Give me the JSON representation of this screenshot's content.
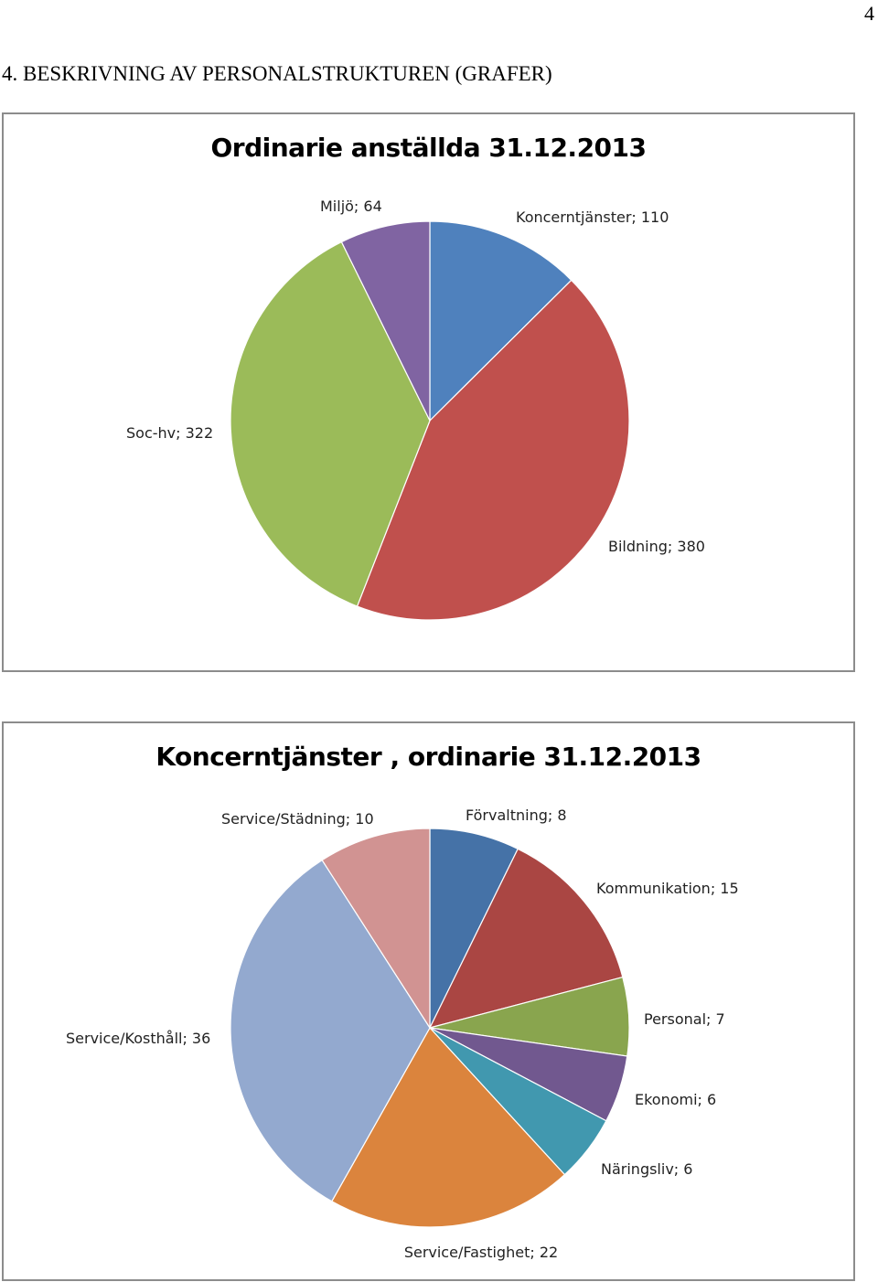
{
  "page": {
    "number": "4",
    "heading": "4. BESKRIVNING AV PERSONALSTRUKTUREN (GRAFER)"
  },
  "chart_data": [
    {
      "type": "pie",
      "title": "Ordinarie anställda 31.12.2013",
      "slices": [
        {
          "label": "Koncerntjänster; 110",
          "name": "Koncerntjänster",
          "value": 110,
          "color": "#4f81bd"
        },
        {
          "label": "Bildning; 380",
          "name": "Bildning",
          "value": 380,
          "color": "#c0504d"
        },
        {
          "label": "Soc-hv; 322",
          "name": "Soc-hv",
          "value": 322,
          "color": "#9bbb59"
        },
        {
          "label": "Miljö; 64",
          "name": "Miljö",
          "value": 64,
          "color": "#8064a2"
        }
      ]
    },
    {
      "type": "pie",
      "title": "Koncerntjänster , ordinarie 31.12.2013",
      "slices": [
        {
          "label": "Förvaltning; 8",
          "name": "Förvaltning",
          "value": 8,
          "color": "#4572a7"
        },
        {
          "label": "Kommunikation; 15",
          "name": "Kommunikation",
          "value": 15,
          "color": "#aa4643"
        },
        {
          "label": "Personal; 7",
          "name": "Personal",
          "value": 7,
          "color": "#89a54e"
        },
        {
          "label": "Ekonomi; 6",
          "name": "Ekonomi",
          "value": 6,
          "color": "#71588f"
        },
        {
          "label": "Näringsliv; 6",
          "name": "Näringsliv",
          "value": 6,
          "color": "#4198af"
        },
        {
          "label": "Service/Fastighet; 22",
          "name": "Service/Fastighet",
          "value": 22,
          "color": "#db843d"
        },
        {
          "label": "Service/Kosthåll; 36",
          "name": "Service/Kosthåll",
          "value": 36,
          "color": "#93a9cf"
        },
        {
          "label": "Service/Städning; 10",
          "name": "Service/Städning",
          "value": 10,
          "color": "#d19392"
        }
      ]
    }
  ]
}
